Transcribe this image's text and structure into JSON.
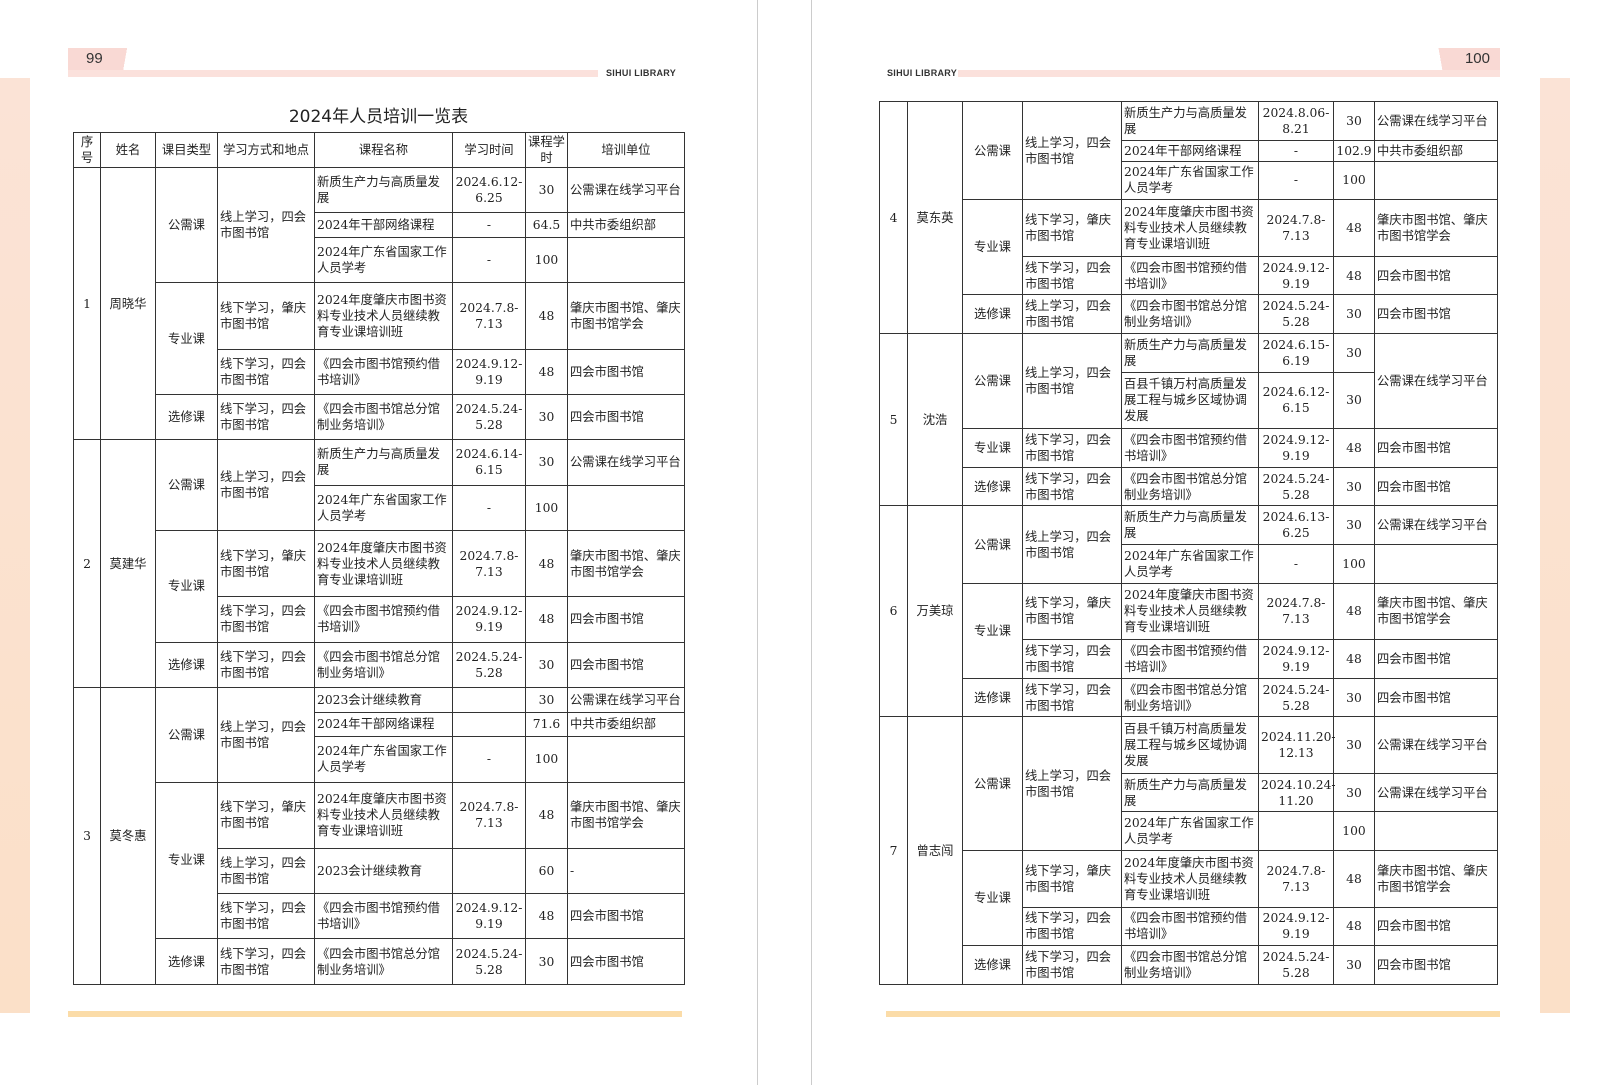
{
  "header": {
    "left_page": "99",
    "right_page": "100",
    "library": "SIHUI LIBRARY"
  },
  "title": "2024年人员培训一览表",
  "columns": [
    "序号",
    "姓名",
    "课目类型",
    "学习方式和地点",
    "课程名称",
    "学习时间",
    "课程学时",
    "培训单位"
  ],
  "colors": {
    "band": "#fbe1dc",
    "footer": "#fbdca8",
    "edge": "#fbe3d6"
  },
  "left_people": [
    {
      "no": "1",
      "name": "周晓华",
      "groups": [
        {
          "type": "公需课",
          "methods": [
            {
              "method": "线上学习，四会市图书馆",
              "courses": [
                {
                  "course": "新质生产力与高质量发展",
                  "time": "2024.6.12-6.25",
                  "hours": "30",
                  "unit": "公需课在线学习平台"
                },
                {
                  "course": "2024年干部网络课程",
                  "time": "-",
                  "hours": "64.5",
                  "unit": "中共市委组织部"
                },
                {
                  "course": "2024年广东省国家工作人员学考",
                  "time": "-",
                  "hours": "100",
                  "unit": ""
                }
              ]
            }
          ]
        },
        {
          "type": "专业课",
          "methods": [
            {
              "method": "线下学习，肇庆市图书馆",
              "courses": [
                {
                  "course": "2024年度肇庆市图书资料专业技术人员继续教育专业课培训班",
                  "time": "2024.7.8-7.13",
                  "hours": "48",
                  "unit": "肇庆市图书馆、肇庆市图书馆学会"
                }
              ]
            },
            {
              "method": "线下学习，四会市图书馆",
              "courses": [
                {
                  "course": "《四会市图书馆预约借书培训》",
                  "time": "2024.9.12-9.19",
                  "hours": "48",
                  "unit": "四会市图书馆"
                }
              ]
            }
          ]
        },
        {
          "type": "选修课",
          "methods": [
            {
              "method": "线下学习，四会市图书馆",
              "courses": [
                {
                  "course": "《四会市图书馆总分馆制业务培训》",
                  "time": "2024.5.24-5.28",
                  "hours": "30",
                  "unit": "四会市图书馆"
                }
              ]
            }
          ]
        }
      ]
    },
    {
      "no": "2",
      "name": "莫建华",
      "groups": [
        {
          "type": "公需课",
          "methods": [
            {
              "method": "线上学习，四会市图书馆",
              "courses": [
                {
                  "course": "新质生产力与高质量发展",
                  "time": "2024.6.14-6.15",
                  "hours": "30",
                  "unit": "公需课在线学习平台"
                },
                {
                  "course": "2024年广东省国家工作人员学考",
                  "time": "-",
                  "hours": "100",
                  "unit": ""
                }
              ]
            }
          ]
        },
        {
          "type": "专业课",
          "methods": [
            {
              "method": "线下学习，肇庆市图书馆",
              "courses": [
                {
                  "course": "2024年度肇庆市图书资料专业技术人员继续教育专业课培训班",
                  "time": "2024.7.8-7.13",
                  "hours": "48",
                  "unit": "肇庆市图书馆、肇庆市图书馆学会"
                }
              ]
            },
            {
              "method": "线下学习，四会市图书馆",
              "courses": [
                {
                  "course": "《四会市图书馆预约借书培训》",
                  "time": "2024.9.12-9.19",
                  "hours": "48",
                  "unit": "四会市图书馆"
                }
              ]
            }
          ]
        },
        {
          "type": "选修课",
          "methods": [
            {
              "method": "线下学习，四会市图书馆",
              "courses": [
                {
                  "course": "《四会市图书馆总分馆制业务培训》",
                  "time": "2024.5.24-5.28",
                  "hours": "30",
                  "unit": "四会市图书馆"
                }
              ]
            }
          ]
        }
      ]
    },
    {
      "no": "3",
      "name": "莫冬惠",
      "groups": [
        {
          "type": "公需课",
          "methods": [
            {
              "method": "线上学习，四会市图书馆",
              "courses": [
                {
                  "course": "2023会计继续教育",
                  "time": "",
                  "hours": "30",
                  "unit": "公需课在线学习平台"
                },
                {
                  "course": "2024年干部网络课程",
                  "time": "",
                  "hours": "71.6",
                  "unit": "中共市委组织部"
                },
                {
                  "course": "2024年广东省国家工作人员学考",
                  "time": "-",
                  "hours": "100",
                  "unit": ""
                }
              ]
            }
          ]
        },
        {
          "type": "专业课",
          "methods": [
            {
              "method": "线下学习，肇庆市图书馆",
              "courses": [
                {
                  "course": "2024年度肇庆市图书资料专业技术人员继续教育专业课培训班",
                  "time": "2024.7.8-7.13",
                  "hours": "48",
                  "unit": "肇庆市图书馆、肇庆市图书馆学会"
                }
              ]
            },
            {
              "method": "线上学习，四会市图书馆",
              "courses": [
                {
                  "course": "2023会计继续教育",
                  "time": "",
                  "hours": "60",
                  "unit": "-"
                }
              ]
            },
            {
              "method": "线下学习，四会市图书馆",
              "courses": [
                {
                  "course": "《四会市图书馆预约借书培训》",
                  "time": "2024.9.12-9.19",
                  "hours": "48",
                  "unit": "四会市图书馆"
                }
              ]
            }
          ]
        },
        {
          "type": "选修课",
          "methods": [
            {
              "method": "线下学习，四会市图书馆",
              "courses": [
                {
                  "course": "《四会市图书馆总分馆制业务培训》",
                  "time": "2024.5.24-5.28",
                  "hours": "30",
                  "unit": "四会市图书馆"
                }
              ]
            }
          ]
        }
      ]
    }
  ],
  "right_people": [
    {
      "no": "4",
      "name": "莫东英",
      "groups": [
        {
          "type": "公需课",
          "methods": [
            {
              "method": "线上学习，四会市图书馆",
              "courses": [
                {
                  "course": "新质生产力与高质量发展",
                  "time": "2024.8.06-8.21",
                  "hours": "30",
                  "unit": "公需课在线学习平台"
                },
                {
                  "course": "2024年干部网络课程",
                  "time": "-",
                  "hours": "102.9",
                  "unit": "中共市委组织部"
                },
                {
                  "course": "2024年广东省国家工作人员学考",
                  "time": "-",
                  "hours": "100",
                  "unit": ""
                }
              ]
            }
          ]
        },
        {
          "type": "专业课",
          "methods": [
            {
              "method": "线下学习，肇庆市图书馆",
              "courses": [
                {
                  "course": "2024年度肇庆市图书资料专业技术人员继续教育专业课培训班",
                  "time": "2024.7.8-7.13",
                  "hours": "48",
                  "unit": "肇庆市图书馆、肇庆市图书馆学会"
                }
              ]
            },
            {
              "method": "线下学习，四会市图书馆",
              "courses": [
                {
                  "course": "《四会市图书馆预约借书培训》",
                  "time": "2024.9.12-9.19",
                  "hours": "48",
                  "unit": "四会市图书馆"
                }
              ]
            }
          ]
        },
        {
          "type": "选修课",
          "methods": [
            {
              "method": "线上学习，四会市图书馆",
              "courses": [
                {
                  "course": "《四会市图书馆总分馆制业务培训》",
                  "time": "2024.5.24-5.28",
                  "hours": "30",
                  "unit": "四会市图书馆"
                }
              ]
            }
          ]
        }
      ]
    },
    {
      "no": "5",
      "name": "沈浩",
      "groups": [
        {
          "type": "公需课",
          "methods": [
            {
              "method": "线上学习，四会市图书馆",
              "shared_unit": "公需课在线学习平台",
              "courses": [
                {
                  "course": "新质生产力与高质量发展",
                  "time": "2024.6.15-6.19",
                  "hours": "30"
                },
                {
                  "course": "百县千镇万村高质量发展工程与城乡区域协调发展",
                  "time": "2024.6.12-6.15",
                  "hours": "30"
                }
              ]
            }
          ]
        },
        {
          "type": "专业课",
          "methods": [
            {
              "method": "线下学习，四会市图书馆",
              "courses": [
                {
                  "course": "《四会市图书馆预约借书培训》",
                  "time": "2024.9.12-9.19",
                  "hours": "48",
                  "unit": "四会市图书馆"
                }
              ]
            }
          ]
        },
        {
          "type": "选修课",
          "methods": [
            {
              "method": "线下学习，四会市图书馆",
              "courses": [
                {
                  "course": "《四会市图书馆总分馆制业务培训》",
                  "time": "2024.5.24-5.28",
                  "hours": "30",
                  "unit": "四会市图书馆"
                }
              ]
            }
          ]
        }
      ]
    },
    {
      "no": "6",
      "name": "万美琼",
      "groups": [
        {
          "type": "公需课",
          "methods": [
            {
              "method": "线上学习，四会市图书馆",
              "courses": [
                {
                  "course": "新质生产力与高质量发展",
                  "time": "2024.6.13-6.25",
                  "hours": "30",
                  "unit": "公需课在线学习平台"
                },
                {
                  "course": "2024年广东省国家工作人员学考",
                  "time": "-",
                  "hours": "100",
                  "unit": ""
                }
              ]
            }
          ]
        },
        {
          "type": "专业课",
          "methods": [
            {
              "method": "线下学习，肇庆市图书馆",
              "courses": [
                {
                  "course": "2024年度肇庆市图书资料专业技术人员继续教育专业课培训班",
                  "time": "2024.7.8-7.13",
                  "hours": "48",
                  "unit": "肇庆市图书馆、肇庆市图书馆学会"
                }
              ]
            },
            {
              "method": "线下学习，四会市图书馆",
              "courses": [
                {
                  "course": "《四会市图书馆预约借书培训》",
                  "time": "2024.9.12-9.19",
                  "hours": "48",
                  "unit": "四会市图书馆"
                }
              ]
            }
          ]
        },
        {
          "type": "选修课",
          "methods": [
            {
              "method": "线下学习，四会市图书馆",
              "courses": [
                {
                  "course": "《四会市图书馆总分馆制业务培训》",
                  "time": "2024.5.24-5.28",
                  "hours": "30",
                  "unit": "四会市图书馆"
                }
              ]
            }
          ]
        }
      ]
    },
    {
      "no": "7",
      "name": "曾志闯",
      "groups": [
        {
          "type": "公需课",
          "methods": [
            {
              "method": "线上学习，四会市图书馆",
              "courses": [
                {
                  "course": "百县千镇万村高质量发展工程与城乡区域协调发展",
                  "time": "2024.11.20-12.13",
                  "hours": "30",
                  "unit": "公需课在线学习平台"
                },
                {
                  "course": "新质生产力与高质量发展",
                  "time": "2024.10.24-11.20",
                  "hours": "30",
                  "unit": "公需课在线学习平台"
                },
                {
                  "course": "2024年广东省国家工作人员学考",
                  "time": "",
                  "hours": "100",
                  "unit": ""
                }
              ]
            }
          ]
        },
        {
          "type": "专业课",
          "methods": [
            {
              "method": "线下学习，肇庆市图书馆",
              "courses": [
                {
                  "course": "2024年度肇庆市图书资料专业技术人员继续教育专业课培训班",
                  "time": "2024.7.8-7.13",
                  "hours": "48",
                  "unit": "肇庆市图书馆、肇庆市图书馆学会"
                }
              ]
            },
            {
              "method": "线下学习，四会市图书馆",
              "courses": [
                {
                  "course": "《四会市图书馆预约借书培训》",
                  "time": "2024.9.12-9.19",
                  "hours": "48",
                  "unit": "四会市图书馆"
                }
              ]
            }
          ]
        },
        {
          "type": "选修课",
          "methods": [
            {
              "method": "线下学习，四会市图书馆",
              "courses": [
                {
                  "course": "《四会市图书馆总分馆制业务培训》",
                  "time": "2024.5.24-5.28",
                  "hours": "30",
                  "unit": "四会市图书馆"
                }
              ]
            }
          ]
        }
      ]
    }
  ]
}
